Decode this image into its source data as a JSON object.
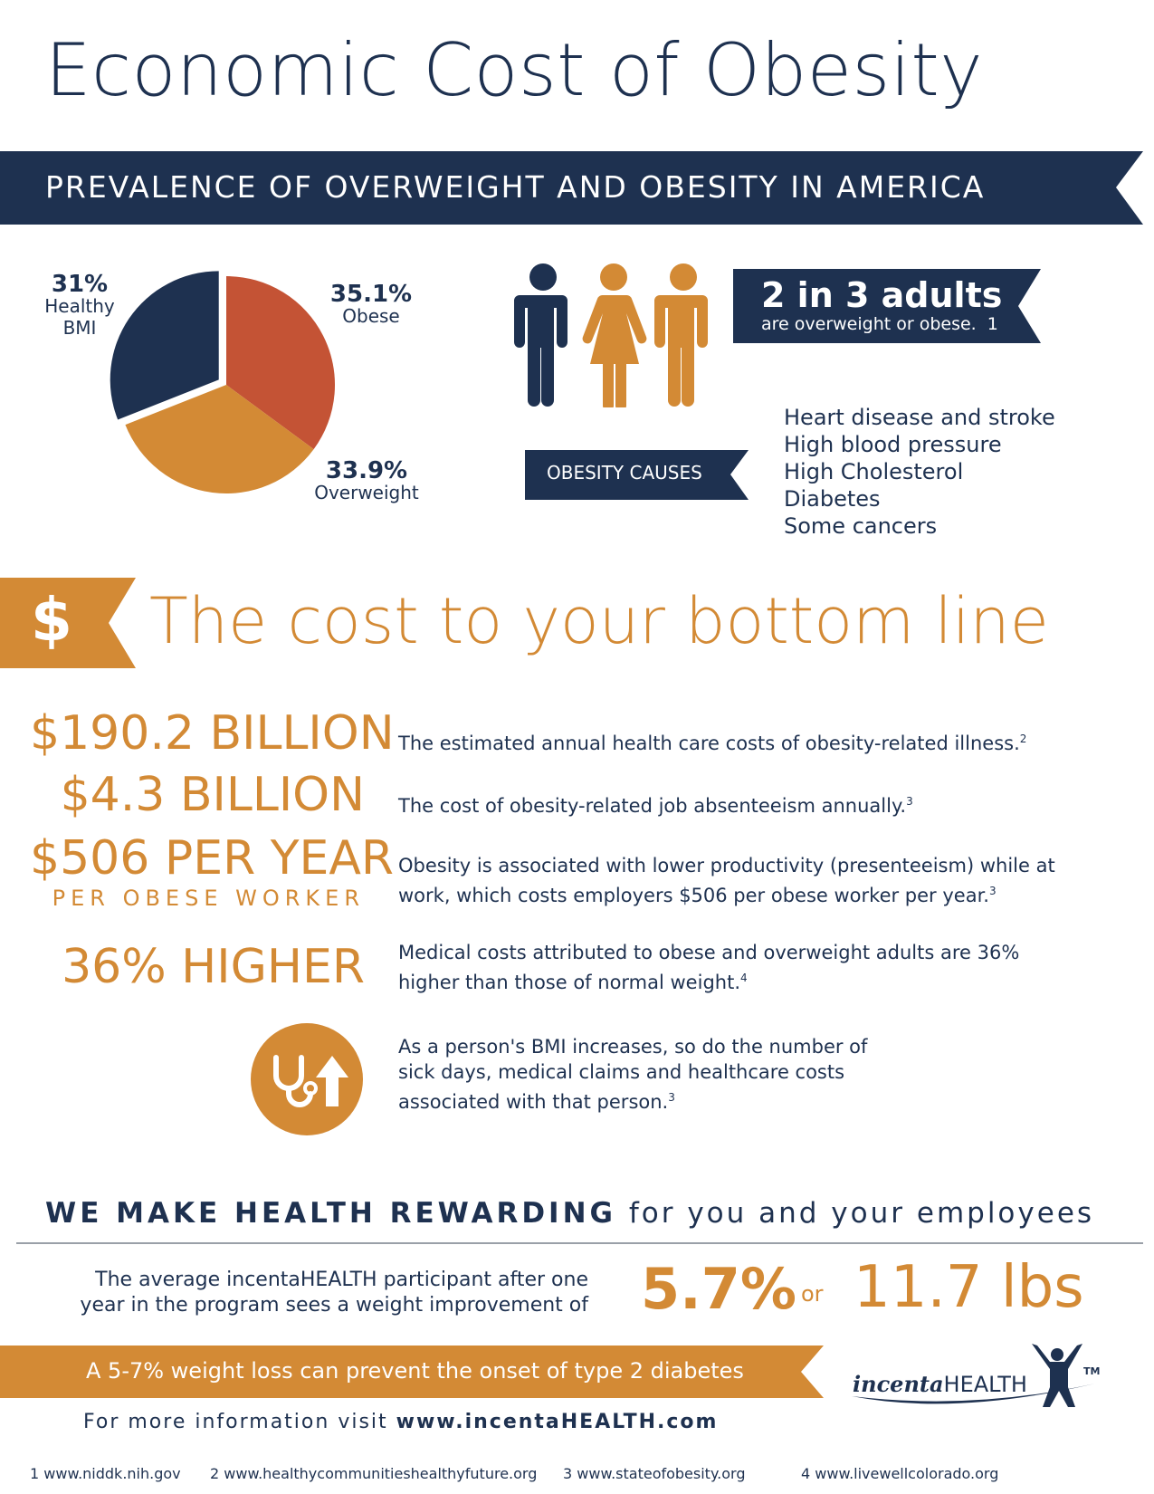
{
  "title": "Economic Cost of Obesity",
  "banner": "PREVALENCE OF OVERWEIGHT AND OBESITY IN AMERICA",
  "colors": {
    "navy": "#1e3150",
    "orange": "#d38a35",
    "red": "#c45335"
  },
  "chart_data": {
    "type": "pie",
    "slices": [
      {
        "label": "Obese",
        "value": 35.1,
        "value_text": "35.1%",
        "color": "#c45335"
      },
      {
        "label": "Overweight",
        "value": 33.9,
        "value_text": "33.9%",
        "color": "#d38a35"
      },
      {
        "label": "Healthy BMI",
        "value": 31,
        "value_text": "31%",
        "color": "#1e3150"
      }
    ]
  },
  "pie_labels": {
    "healthy_pct": "31%",
    "healthy_l1": "Healthy",
    "healthy_l2": "BMI",
    "obese_pct": "35.1%",
    "obese": "Obese",
    "over_pct": "33.9%",
    "over": "Overweight"
  },
  "stat": {
    "headline": "2 in 3 adults",
    "sub": "are overweight or obese.",
    "ref": "1"
  },
  "causes": {
    "label": "OBESITY CAUSES",
    "items": [
      "Heart disease and stroke",
      "High blood pressure",
      "High Cholesterol",
      "Diabetes",
      "Some cancers"
    ]
  },
  "cost": {
    "symbol": "$",
    "heading": "The cost to your bottom line"
  },
  "facts": [
    {
      "figure": "$190.2 BILLION",
      "text": "The estimated annual health care costs of obesity-related illness.",
      "ref": "2"
    },
    {
      "figure": "$4.3 BILLION",
      "text": "The cost of obesity-related job absenteeism annually.",
      "ref": "3"
    },
    {
      "figure": "$506 PER YEAR",
      "sub": "PER OBESE WORKER",
      "text": "Obesity is associated with lower productivity (presenteeism) while at work, which costs employers $506 per obese worker per year.",
      "ref": "3"
    },
    {
      "figure": "36% HIGHER",
      "text": "Medical costs attributed to obese and overweight adults are 36% higher than those of normal weight.",
      "ref": "4"
    },
    {
      "icon": "stethoscope-arrow-icon",
      "text": "As a person's BMI increases, so do the number of sick days, medical claims and healthcare costs associated with that person.",
      "ref": "3"
    }
  ],
  "rewarding": {
    "bold": "WE MAKE HEALTH REWARDING",
    "rest": "for you and your employees"
  },
  "participant": {
    "line1": "The average incentaHEALTH participant  after one",
    "line2": "year in the program sees a weight improvement of",
    "pct": "5.7%",
    "or": "or",
    "lbs": "11.7 lbs"
  },
  "diabetes_banner": "A 5-7% weight loss can prevent the onset of type 2 diabetes",
  "more_info": {
    "prefix": "For more information visit",
    "url": "www.incentaHEALTH.com"
  },
  "logo": {
    "italic": "incenta",
    "caps": "HEALTH",
    "tm": "TM"
  },
  "footnotes": [
    {
      "num": "1",
      "url": "www.niddk.nih.gov"
    },
    {
      "num": "2",
      "url": "www.healthycommunitieshealthyfuture.org"
    },
    {
      "num": "3",
      "url": "www.stateofobesity.org"
    },
    {
      "num": "4",
      "url": "www.livewellcolorado.org"
    }
  ]
}
